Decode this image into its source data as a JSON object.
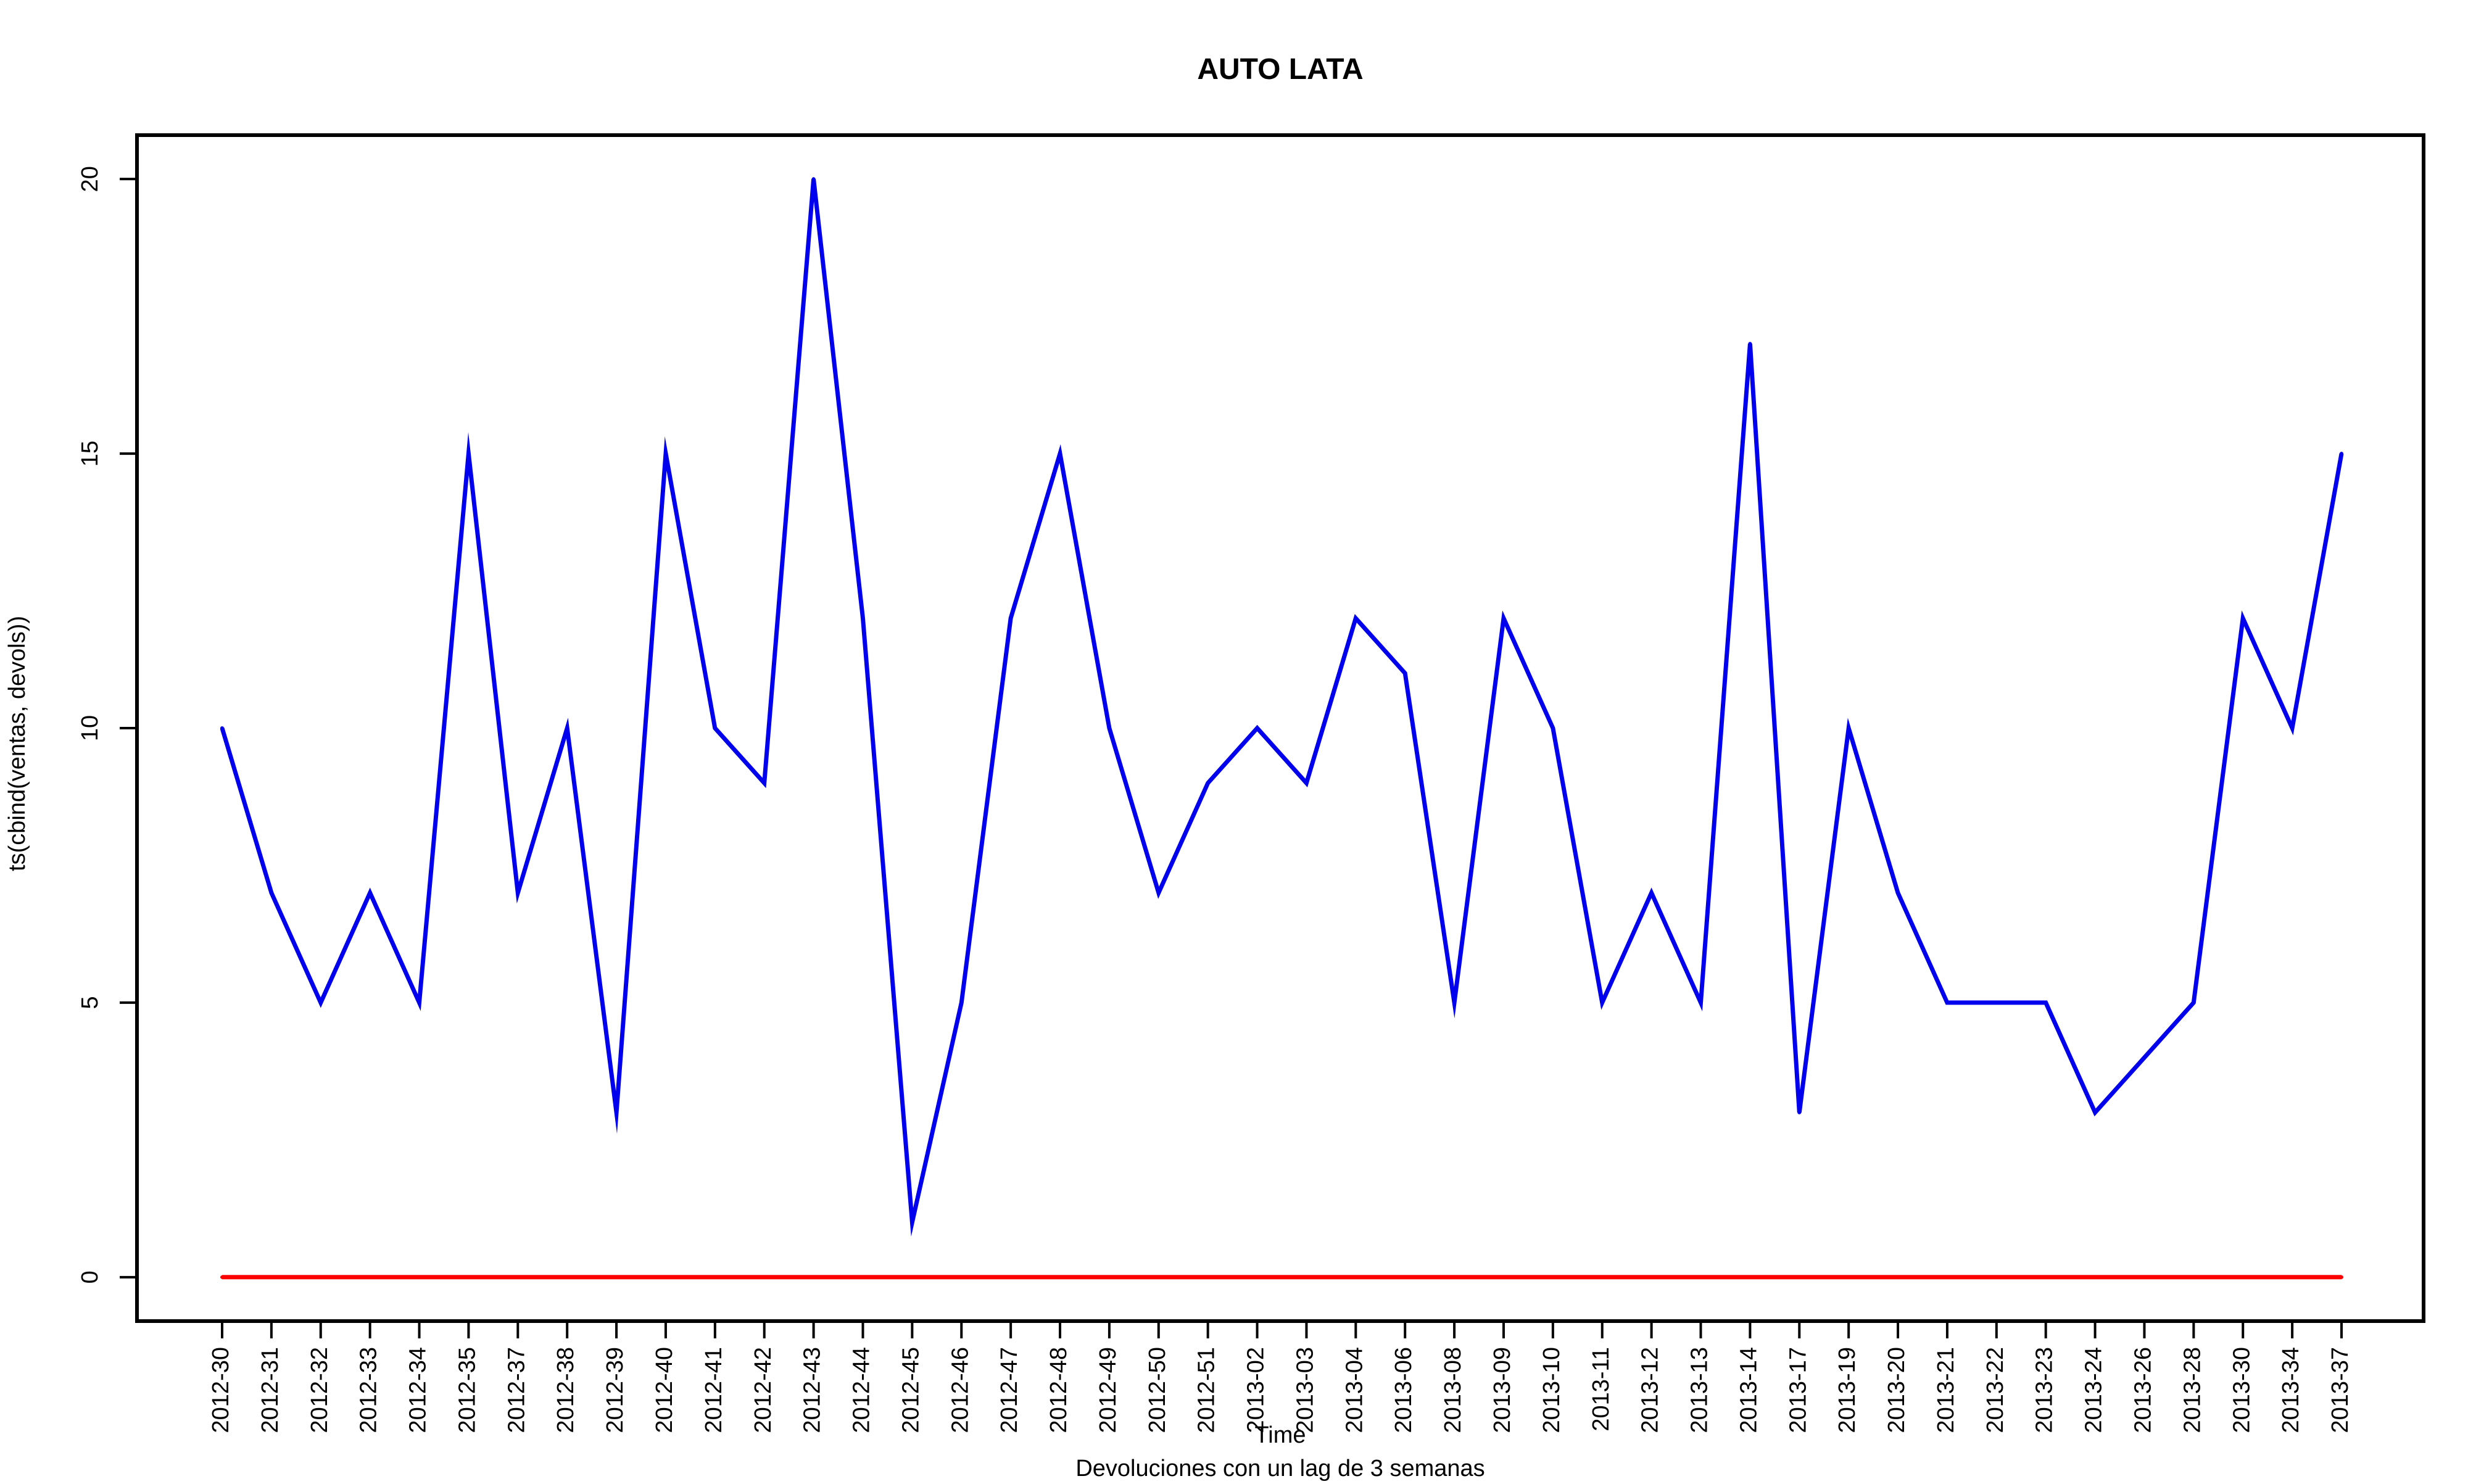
{
  "chart_data": {
    "type": "line",
    "title": "AUTO LATA",
    "xlabel": "Time",
    "ylabel": "ts(cbind(ventas, devols))",
    "subtitle": "Devoluciones con un lag de 3 semanas",
    "ylim": [
      -0.8,
      20.8
    ],
    "yticks": [
      0,
      5,
      10,
      15,
      20
    ],
    "grid": false,
    "legend": "none",
    "categories": [
      "2012-30",
      "2012-31",
      "2012-32",
      "2012-33",
      "2012-34",
      "2012-35",
      "2012-37",
      "2012-38",
      "2012-39",
      "2012-40",
      "2012-41",
      "2012-42",
      "2012-43",
      "2012-44",
      "2012-45",
      "2012-46",
      "2012-47",
      "2012-48",
      "2012-49",
      "2012-50",
      "2012-51",
      "2013-02",
      "2013-03",
      "2013-04",
      "2013-06",
      "2013-08",
      "2013-09",
      "2013-10",
      "2013-11",
      "2013-12",
      "2013-13",
      "2013-14",
      "2013-17",
      "2013-19",
      "2013-20",
      "2013-21",
      "2013-22",
      "2013-23",
      "2013-24",
      "2013-26",
      "2013-28",
      "2013-30",
      "2013-34",
      "2013-37"
    ],
    "series": [
      {
        "color": "#0000ee",
        "values": [
          10,
          7,
          5,
          7,
          5,
          15,
          7,
          10,
          3,
          15,
          10,
          9,
          20,
          12,
          1,
          5,
          12,
          15,
          10,
          7,
          9,
          10,
          9,
          12,
          11,
          5,
          12,
          10,
          5,
          7,
          5,
          17,
          3,
          10,
          7,
          5,
          5,
          5,
          3,
          4,
          5,
          12,
          10,
          15
        ]
      },
      {
        "color": "#ff0000",
        "values": [
          0,
          0,
          0,
          0,
          0,
          0,
          0,
          0,
          0,
          0,
          0,
          0,
          0,
          0,
          0,
          0,
          0,
          0,
          0,
          0,
          0,
          0,
          0,
          0,
          0,
          0,
          0,
          0,
          0,
          0,
          0,
          0,
          0,
          0,
          0,
          0,
          0,
          0,
          0,
          0,
          0,
          0,
          0,
          0
        ]
      }
    ]
  }
}
